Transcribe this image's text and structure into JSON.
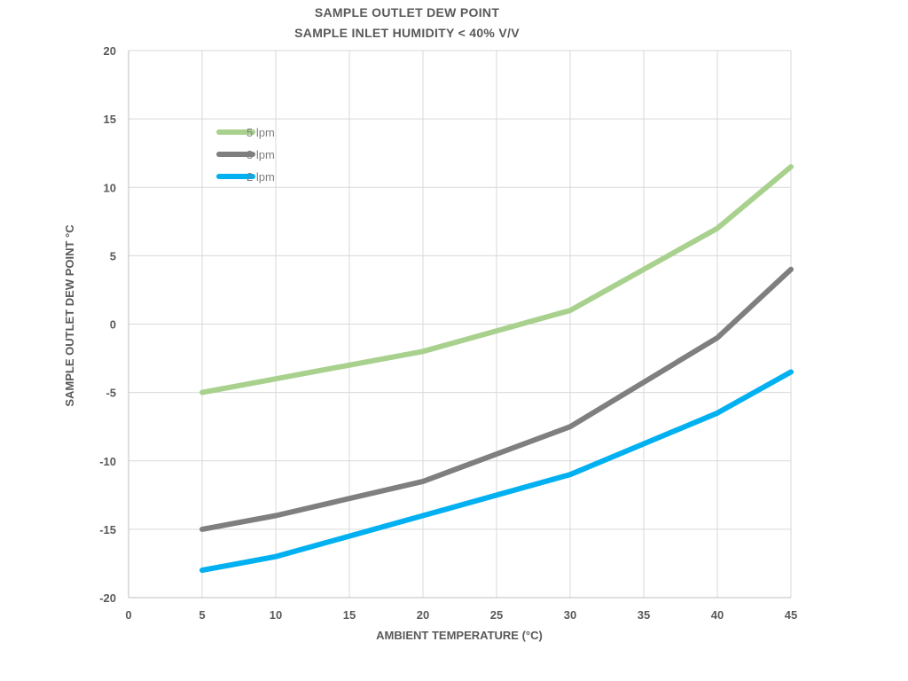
{
  "chart_data": {
    "type": "line",
    "title": "SAMPLE OUTLET DEW POINT",
    "subtitle": "SAMPLE INLET HUMIDITY < 40% V/V",
    "xlabel": "AMBIENT TEMPERATURE (°C)",
    "ylabel": "SAMPLE OUTLET DEW POINT °C",
    "xlim": [
      0,
      45
    ],
    "ylim": [
      -20,
      20
    ],
    "xticks": [
      0,
      5,
      10,
      15,
      20,
      25,
      30,
      35,
      40,
      45
    ],
    "yticks": [
      -20,
      -15,
      -10,
      -5,
      0,
      5,
      10,
      15,
      20
    ],
    "grid": true,
    "legend_position": "top-left",
    "series": [
      {
        "name": "5 lpm",
        "color": "#a9d18e",
        "x": [
          5,
          10,
          20,
          30,
          40,
          45
        ],
        "y": [
          -5,
          -4,
          -2,
          1,
          7,
          11.5
        ]
      },
      {
        "name": "3 lpm",
        "color": "#7f7f7f",
        "x": [
          5,
          10,
          20,
          30,
          40,
          45
        ],
        "y": [
          -15,
          -14,
          -11.5,
          -7.5,
          -1,
          4
        ]
      },
      {
        "name": "2 lpm",
        "color": "#00b0f0",
        "x": [
          5,
          10,
          20,
          30,
          40,
          45
        ],
        "y": [
          -18,
          -17,
          -14,
          -11,
          -6.5,
          -3.5
        ]
      }
    ]
  }
}
